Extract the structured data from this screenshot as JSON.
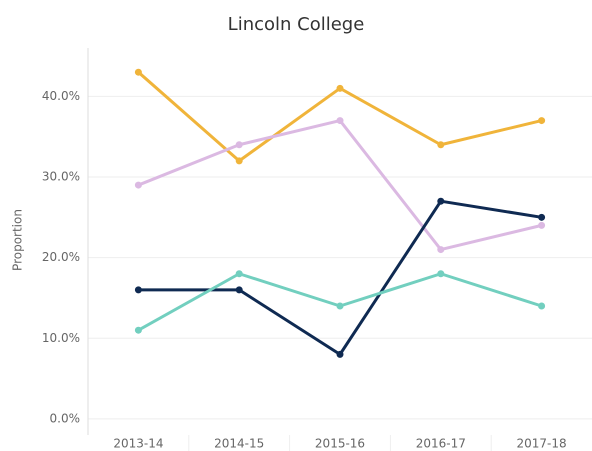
{
  "chart_data": {
    "type": "line",
    "title": "Lincoln College",
    "y_label": "Proportion",
    "categories": [
      "2013-14",
      "2014-15",
      "2015-16",
      "2016-17",
      "2017-18"
    ],
    "series": [
      {
        "color": "#f0b43a",
        "values": [
          43,
          32,
          41,
          34,
          37
        ]
      },
      {
        "color": "#dbb9e2",
        "values": [
          29,
          34,
          37,
          21,
          24
        ]
      },
      {
        "color": "#0f2a52",
        "values": [
          16,
          16,
          8,
          27,
          25
        ]
      },
      {
        "color": "#72cfbf",
        "values": [
          11,
          18,
          14,
          18,
          14
        ]
      }
    ],
    "ylim": [
      -2,
      46
    ],
    "yticks": [
      {
        "value": 0,
        "label": "0.0%"
      },
      {
        "value": 10,
        "label": "10.0%"
      },
      {
        "value": 20,
        "label": "20.0%"
      },
      {
        "value": 30,
        "label": "30.0%"
      },
      {
        "value": 40,
        "label": "40.0%"
      }
    ],
    "grid": true
  }
}
